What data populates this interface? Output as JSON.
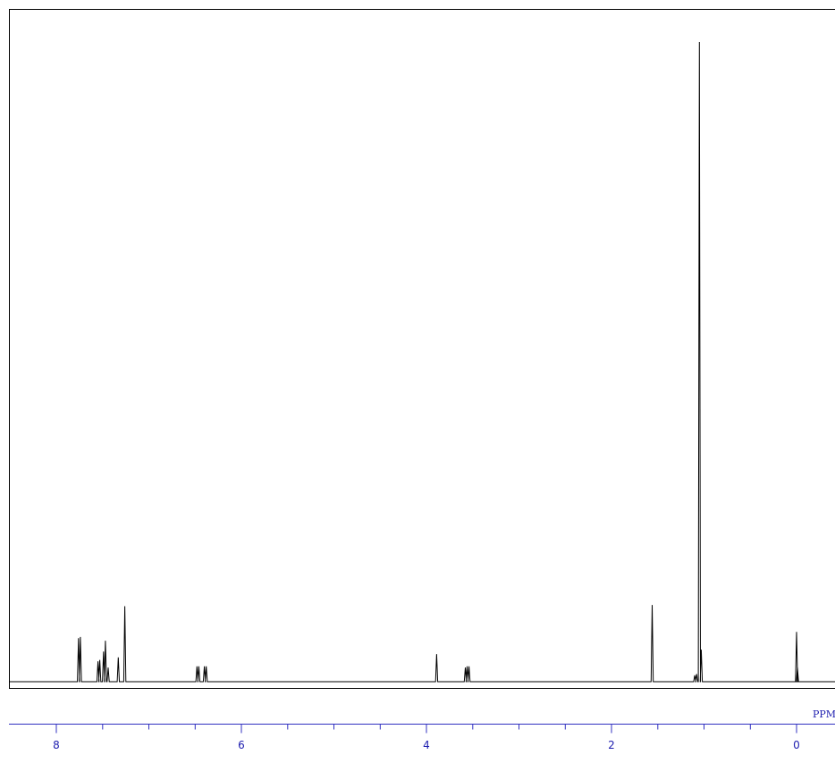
{
  "chart_data": {
    "type": "line",
    "title": "",
    "xlabel": "PPM",
    "ylabel": "",
    "x_reversed": true,
    "xlim": [
      8.5,
      -0.45
    ],
    "ylim": [
      0,
      1
    ],
    "tick_labels": [
      "8",
      "6",
      "4",
      "2",
      "0"
    ],
    "tick_values": [
      8,
      6,
      4,
      2,
      0
    ],
    "minor_tick_step": 0.5,
    "grid": false,
    "colors": {
      "spectrum": "#000000",
      "axis": "#3030c0",
      "frame": "#000000"
    },
    "peaks": [
      {
        "ppm": 7.76,
        "height": 0.068
      },
      {
        "ppm": 7.74,
        "height": 0.07
      },
      {
        "ppm": 7.55,
        "height": 0.032
      },
      {
        "ppm": 7.53,
        "height": 0.034
      },
      {
        "ppm": 7.49,
        "height": 0.047
      },
      {
        "ppm": 7.47,
        "height": 0.064
      },
      {
        "ppm": 7.44,
        "height": 0.022
      },
      {
        "ppm": 7.33,
        "height": 0.038
      },
      {
        "ppm": 7.26,
        "height": 0.118
      },
      {
        "ppm": 6.48,
        "height": 0.024
      },
      {
        "ppm": 6.46,
        "height": 0.024
      },
      {
        "ppm": 6.4,
        "height": 0.024
      },
      {
        "ppm": 6.38,
        "height": 0.024
      },
      {
        "ppm": 3.89,
        "height": 0.043
      },
      {
        "ppm": 3.58,
        "height": 0.022
      },
      {
        "ppm": 3.56,
        "height": 0.024
      },
      {
        "ppm": 3.54,
        "height": 0.024
      },
      {
        "ppm": 1.56,
        "height": 0.12
      },
      {
        "ppm": 1.1,
        "height": 0.01
      },
      {
        "ppm": 1.08,
        "height": 0.012
      },
      {
        "ppm": 1.05,
        "height": 1.0
      },
      {
        "ppm": 1.03,
        "height": 0.05
      },
      {
        "ppm": 0.0,
        "height": 0.078
      },
      {
        "ppm": -0.01,
        "height": 0.022
      }
    ]
  }
}
